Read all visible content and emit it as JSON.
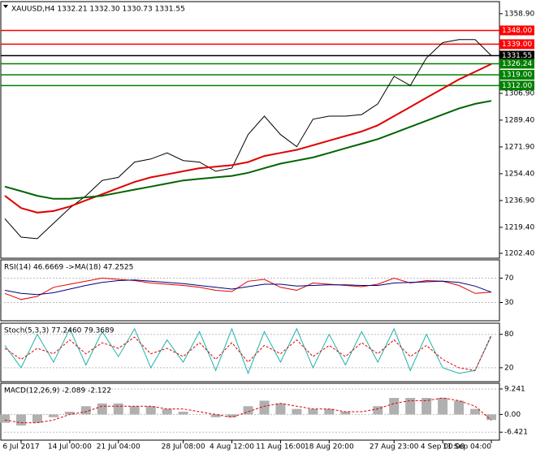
{
  "chart_data": [
    {
      "type": "line",
      "title": "XAUUSD,H4  1332.21 1332.30 1330.73 1331.55",
      "categories": [
        null,
        "6 Jul 2017",
        null,
        null,
        "14 Jul 00:00",
        null,
        null,
        "21 Jul 04:00",
        null,
        null,
        null,
        "28 Jul 08:00",
        null,
        null,
        "4 Aug 12:00",
        null,
        null,
        "11 Aug 16:00",
        null,
        null,
        "18 Aug 20:00",
        null,
        null,
        null,
        "27 Aug 23:00",
        null,
        null,
        "4 Sep 00:00",
        null,
        null,
        "11 Sep 04:00"
      ],
      "series": [
        {
          "color": "#000000",
          "values": [
            1225,
            1213,
            1212,
            1222,
            1232,
            1240,
            1250,
            1252,
            1262,
            1264,
            1268,
            1263,
            1262,
            1256,
            1258,
            1280,
            1292,
            1280,
            1272,
            1290,
            1292,
            1292,
            1293,
            1300,
            1318,
            1312,
            1330,
            1340,
            1342,
            1342,
            1331.55
          ]
        },
        {
          "color": "#e00000",
          "values": [
            1240,
            1232,
            1229,
            1230,
            1233,
            1237,
            1241,
            1245,
            1249,
            1252,
            1254,
            1256,
            1258,
            1259,
            1260,
            1262,
            1266,
            1268,
            1270,
            1273,
            1276,
            1279,
            1282,
            1286,
            1292,
            1298,
            1304,
            1310,
            1316,
            1321,
            1326
          ]
        },
        {
          "color": "#006400",
          "values": [
            1246,
            1243,
            1240,
            1238,
            1238,
            1239,
            1240,
            1242,
            1244,
            1246,
            1248,
            1250,
            1251,
            1252,
            1253,
            1255,
            1258,
            1261,
            1263,
            1265,
            1268,
            1271,
            1274,
            1277,
            1281,
            1285,
            1289,
            1293,
            1297,
            1300,
            1302
          ]
        }
      ],
      "levels": [
        {
          "value": 1348,
          "label": "1348.00",
          "color": "#ff0000"
        },
        {
          "value": 1339,
          "label": "1339.00",
          "color": "#ff0000"
        },
        {
          "value": 1331.55,
          "label": "1331.55",
          "color": "#000000"
        },
        {
          "value": 1326.24,
          "label": "1326.24",
          "color": "#008000"
        },
        {
          "value": 1319,
          "label": "1319.00",
          "color": "#008000"
        },
        {
          "value": 1312,
          "label": "1312.00",
          "color": "#008000"
        }
      ],
      "ylim": [
        1199.2,
        1366.8
      ],
      "yticks": [
        {
          "value": 1358.9,
          "label": "1358.90"
        },
        {
          "value": 1306.9,
          "label": "1306.90"
        },
        {
          "value": 1289.4,
          "label": "1289.40"
        },
        {
          "value": 1271.9,
          "label": "1271.90"
        },
        {
          "value": 1254.4,
          "label": "1254.40"
        },
        {
          "value": 1236.9,
          "label": "1236.90"
        },
        {
          "value": 1219.4,
          "label": "1219.40"
        },
        {
          "value": 1202.4,
          "label": "1202.40"
        }
      ]
    },
    {
      "type": "line",
      "title": "RSI(14) 46.6669 ->MA(18) 47.2525",
      "series": [
        {
          "color": "#e00000",
          "values": [
            45,
            35,
            40,
            55,
            60,
            65,
            70,
            68,
            66,
            62,
            60,
            58,
            55,
            50,
            48,
            65,
            68,
            55,
            50,
            62,
            60,
            58,
            56,
            60,
            70,
            62,
            66,
            65,
            58,
            45,
            47
          ]
        },
        {
          "color": "#000080",
          "values": [
            50,
            45,
            43,
            46,
            52,
            58,
            63,
            66,
            67,
            65,
            63,
            61,
            58,
            55,
            52,
            56,
            60,
            60,
            57,
            58,
            59,
            59,
            58,
            58,
            62,
            63,
            64,
            65,
            63,
            57,
            47
          ]
        }
      ],
      "ylim": [
        0,
        100
      ],
      "yticks": [
        70,
        30
      ]
    },
    {
      "type": "line",
      "title": "Stoch(5,3,3) 77.2460 79.3689",
      "series": [
        {
          "color": "#20b2aa",
          "values": [
            60,
            20,
            80,
            30,
            90,
            25,
            85,
            40,
            90,
            20,
            70,
            30,
            85,
            15,
            90,
            10,
            85,
            30,
            90,
            20,
            80,
            25,
            85,
            30,
            90,
            15,
            80,
            20,
            10,
            15,
            77
          ]
        },
        {
          "color": "#e00000",
          "dash": true,
          "values": [
            55,
            35,
            55,
            45,
            70,
            45,
            65,
            55,
            75,
            45,
            55,
            40,
            65,
            35,
            65,
            30,
            60,
            45,
            70,
            40,
            60,
            40,
            65,
            45,
            70,
            40,
            60,
            35,
            20,
            15,
            79
          ]
        }
      ],
      "ylim": [
        -5,
        100
      ],
      "yticks": [
        80,
        20
      ]
    },
    {
      "type": "bar",
      "title": "MACD(12,26,9) -2.089 -2.122",
      "color": "#b0b0b0",
      "values": [
        -3,
        -4,
        -3,
        -1,
        1,
        3,
        4,
        4,
        3,
        3,
        2,
        1,
        0,
        -1,
        -1,
        3,
        5,
        4,
        2,
        2,
        2,
        1,
        0,
        3,
        6,
        6,
        6,
        6,
        5,
        2,
        -2
      ],
      "series": [
        {
          "color": "#e00000",
          "dash": true,
          "values": [
            -2,
            -3,
            -3,
            -2,
            0,
            1,
            3,
            3,
            3,
            3,
            2,
            2,
            1,
            0,
            -1,
            1,
            3,
            4,
            3,
            2,
            2,
            1,
            1,
            2,
            4,
            5,
            5,
            6,
            5,
            3,
            -2.1
          ]
        }
      ],
      "ylim": [
        -9.3,
        11.3
      ],
      "yticks": [
        9.241,
        {
          "value": 0,
          "label": "0.00"
        },
        -6.421
      ]
    }
  ]
}
